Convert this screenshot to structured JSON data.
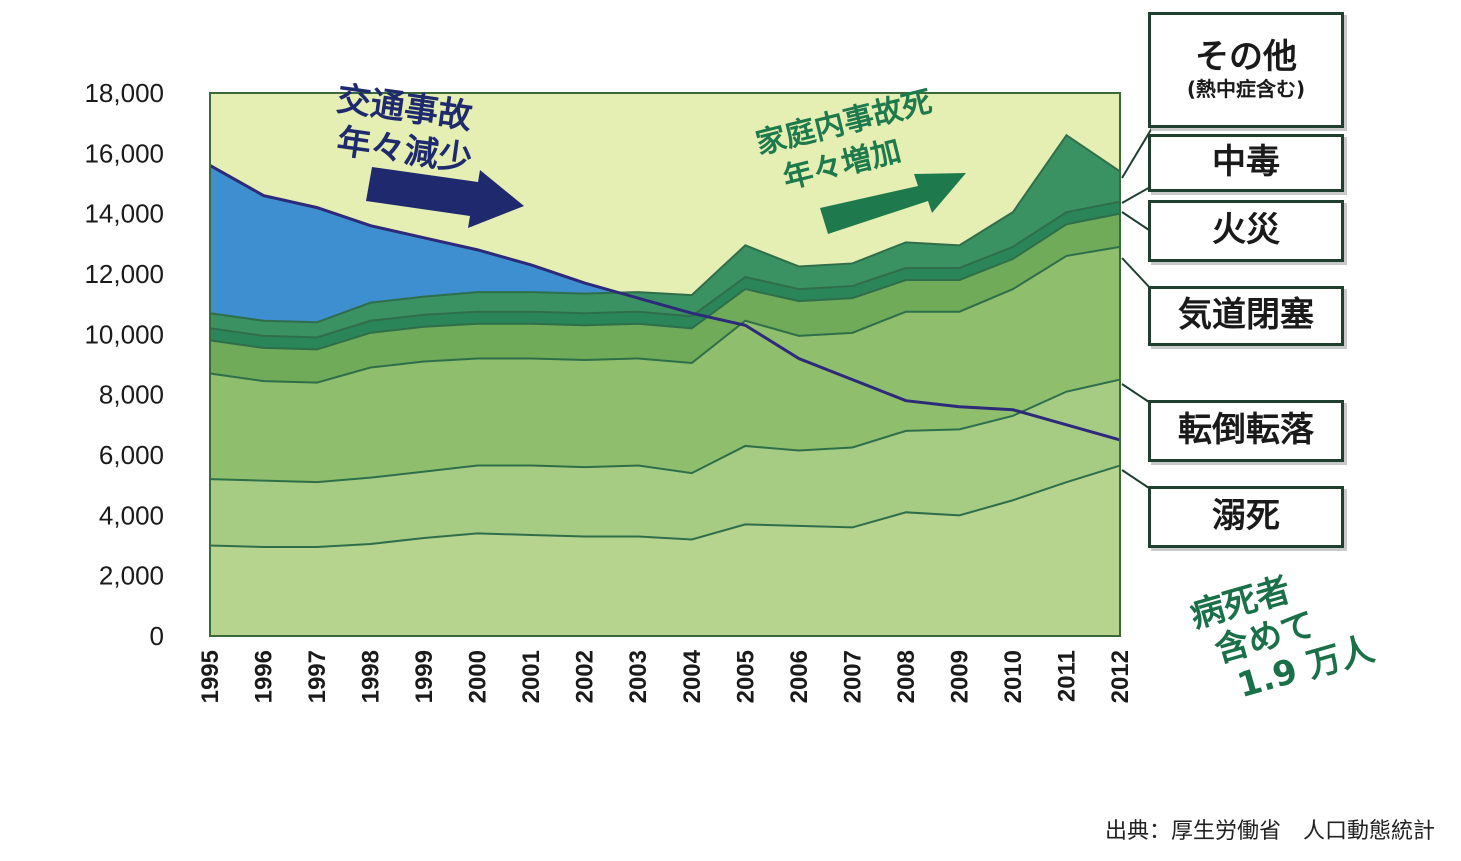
{
  "chart_data": {
    "type": "area",
    "x": [
      1995,
      1996,
      1997,
      1998,
      1999,
      2000,
      2001,
      2002,
      2003,
      2004,
      2005,
      2006,
      2007,
      2008,
      2009,
      2010,
      2011,
      2012
    ],
    "ylim": [
      0,
      18000
    ],
    "yticks": [
      "0",
      "2,000",
      "4,000",
      "6,000",
      "8,000",
      "10,000",
      "12,000",
      "14,000",
      "16,000",
      "18,000"
    ],
    "stacked": true,
    "series": [
      {
        "name": "溺死",
        "color": "#b6d48e",
        "values": [
          3000,
          2950,
          2950,
          3050,
          3250,
          3400,
          3350,
          3300,
          3300,
          3200,
          3700,
          3650,
          3600,
          4100,
          4000,
          4500,
          5100,
          5650
        ]
      },
      {
        "name": "転倒転落",
        "color": "#a6cc84",
        "values": [
          2200,
          2200,
          2150,
          2200,
          2200,
          2250,
          2300,
          2300,
          2350,
          2200,
          2600,
          2500,
          2650,
          2700,
          2850,
          2800,
          3000,
          2850
        ]
      },
      {
        "name": "気道閉塞",
        "color": "#8fbf6c",
        "values": [
          3500,
          3300,
          3300,
          3650,
          3650,
          3550,
          3550,
          3550,
          3550,
          3650,
          4150,
          3800,
          3800,
          3950,
          3900,
          4200,
          4500,
          4400
        ]
      },
      {
        "name": "火災",
        "color": "#6fab58",
        "values": [
          1100,
          1100,
          1100,
          1150,
          1150,
          1150,
          1150,
          1150,
          1150,
          1150,
          1050,
          1150,
          1150,
          1050,
          1050,
          1000,
          1050,
          1100
        ]
      },
      {
        "name": "中毒",
        "color": "#2a8658",
        "values": [
          400,
          400,
          400,
          400,
          400,
          400,
          400,
          400,
          400,
          400,
          400,
          400,
          400,
          400,
          400,
          400,
          400,
          400
        ]
      },
      {
        "name": "その他（熱中症含む）",
        "color": "#3a9262",
        "values": [
          500,
          500,
          500,
          600,
          600,
          650,
          650,
          650,
          650,
          700,
          1050,
          750,
          750,
          850,
          750,
          1150,
          2550,
          1000
        ]
      }
    ],
    "line": {
      "name": "交通事故",
      "color": "#2e2a7a",
      "fill": "#3d8fcf",
      "values": [
        15600,
        14600,
        14200,
        13600,
        13200,
        12800,
        12300,
        11700,
        11200,
        10700,
        10300,
        9200,
        8500,
        7800,
        7600,
        7500,
        7000,
        6500
      ]
    },
    "legend": {
      "other_main": "その他",
      "other_sub": "(熱中症含む)",
      "poisoning": "中毒",
      "fire": "火災",
      "choking": "気道閉塞",
      "falls": "転倒転落",
      "drowning": "溺死"
    },
    "annotations": {
      "traffic_line1": "交通事故",
      "traffic_line2": "年々減少",
      "home_line1": "家庭内事故死",
      "home_line2": "年々増加",
      "note_line1": "病死者",
      "note_line2": "含めて",
      "note_line3": "1.9 万人"
    },
    "source": "出典：厚生労働省　人口動態統計",
    "colors": {
      "plot_bg": "#e5efb3",
      "traffic_arrow": "#1f2a6e",
      "home_arrow": "#1e7a4d",
      "note": "#1a7048"
    }
  }
}
